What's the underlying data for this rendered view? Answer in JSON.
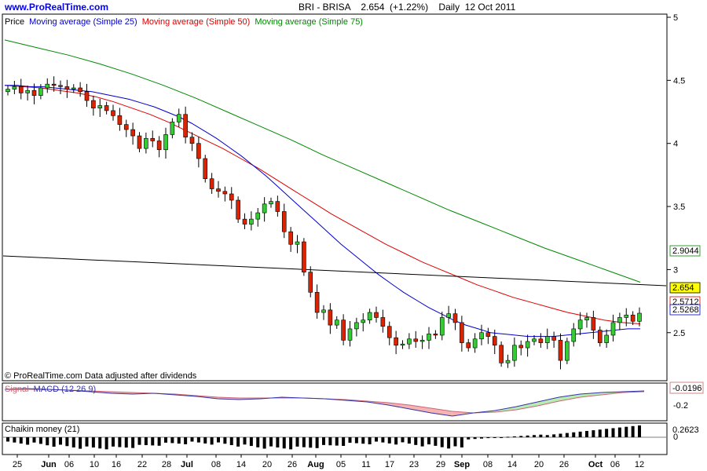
{
  "header": {
    "site": "www.ProRealTime.com",
    "symbol_line": "BRI - BRISA    2.654  (+1.22%)    Daily  12 Oct 2011"
  },
  "legend": {
    "price": "Price",
    "ma25": "Moving average (Simple 25)",
    "ma50": "Moving average (Simple 50)",
    "ma75": "Moving average (Simple 75)"
  },
  "footer_note": "© ProRealTime.com  Data adjusted after dividends",
  "macd_label": {
    "signal": "Signal",
    "macd": "MACD (12 26 9)"
  },
  "chaikin_label": "Chaikin money (21)",
  "colors": {
    "ma25": "#0000cc",
    "ma50": "#dd0000",
    "ma75": "#008800",
    "up": "#33cc33",
    "down": "#dd2200",
    "trendline": "#000000"
  },
  "chart_data": {
    "type": "candlestick",
    "price_axis_ticks": [
      "5",
      "4.5",
      "4",
      "3.5",
      "3",
      "2.5"
    ],
    "ylim": [
      2.15,
      5.0
    ],
    "x_ticks": [
      "25",
      "Jun",
      "06",
      "10",
      "16",
      "22",
      "28",
      "Jul",
      "08",
      "14",
      "20",
      "26",
      "Aug",
      "05",
      "11",
      "17",
      "23",
      "29",
      "Sep",
      "08",
      "14",
      "20",
      "26",
      "Oct",
      "06",
      "12"
    ],
    "last_labels": {
      "ma75": "2.9044",
      "price": "2.654",
      "ma50": "2.5712",
      "ma25": "2.5268"
    },
    "closes": [
      4.43,
      4.45,
      4.4,
      4.42,
      4.38,
      4.44,
      4.47,
      4.46,
      4.45,
      4.43,
      4.44,
      4.41,
      4.34,
      4.28,
      4.3,
      4.26,
      4.22,
      4.15,
      4.11,
      4.06,
      3.96,
      4.04,
      4.02,
      3.95,
      4.07,
      4.17,
      4.23,
      4.05,
      4.0,
      3.88,
      3.72,
      3.64,
      3.62,
      3.6,
      3.55,
      3.4,
      3.36,
      3.4,
      3.45,
      3.52,
      3.54,
      3.46,
      3.3,
      3.2,
      3.22,
      2.98,
      2.82,
      2.66,
      2.68,
      2.56,
      2.6,
      2.44,
      2.53,
      2.58,
      2.6,
      2.66,
      2.62,
      2.55,
      2.46,
      2.4,
      2.41,
      2.45,
      2.43,
      2.44,
      2.49,
      2.48,
      2.62,
      2.65,
      2.58,
      2.42,
      2.38,
      2.45,
      2.5,
      2.47,
      2.4,
      2.26,
      2.28,
      2.4,
      2.38,
      2.43,
      2.45,
      2.42,
      2.47,
      2.44,
      2.28,
      2.43,
      2.53,
      2.6,
      2.62,
      2.52,
      2.42,
      2.48,
      2.58,
      2.62,
      2.64,
      2.59,
      2.654
    ],
    "ma25": [
      4.46,
      4.46,
      4.45,
      4.45,
      4.44,
      4.43,
      4.42,
      4.41,
      4.39,
      4.37,
      4.35,
      4.32,
      4.29,
      4.25,
      4.21,
      4.16,
      4.1,
      4.04,
      3.97,
      3.9,
      3.82,
      3.74,
      3.65,
      3.56,
      3.47,
      3.38,
      3.29,
      3.2,
      3.12,
      3.04,
      2.96,
      2.89,
      2.82,
      2.76,
      2.7,
      2.65,
      2.6,
      2.56,
      2.53,
      2.5,
      2.49,
      2.48,
      2.47,
      2.47,
      2.47,
      2.48,
      2.49,
      2.5,
      2.51,
      2.52,
      2.53,
      2.53
    ],
    "ma50": [
      4.46,
      4.45,
      4.44,
      4.42,
      4.4,
      4.37,
      4.33,
      4.28,
      4.23,
      4.17,
      4.1,
      4.03,
      3.96,
      3.88,
      3.8,
      3.71,
      3.62,
      3.53,
      3.44,
      3.36,
      3.28,
      3.2,
      3.13,
      3.06,
      3.0,
      2.94,
      2.88,
      2.83,
      2.78,
      2.74,
      2.7,
      2.66,
      2.63,
      2.6,
      2.58,
      2.57
    ],
    "ma75": [
      4.82,
      4.76,
      4.7,
      4.63,
      4.55,
      4.46,
      4.36,
      4.25,
      4.14,
      4.03,
      3.91,
      3.8,
      3.69,
      3.58,
      3.47,
      3.37,
      3.27,
      3.17,
      3.08,
      2.99,
      2.9
    ],
    "macd_value": "-0.0196",
    "macd_ticks": [
      "-0.2"
    ],
    "chaikin_value": "0.2623",
    "chaikin_ticks": [
      "0"
    ]
  }
}
